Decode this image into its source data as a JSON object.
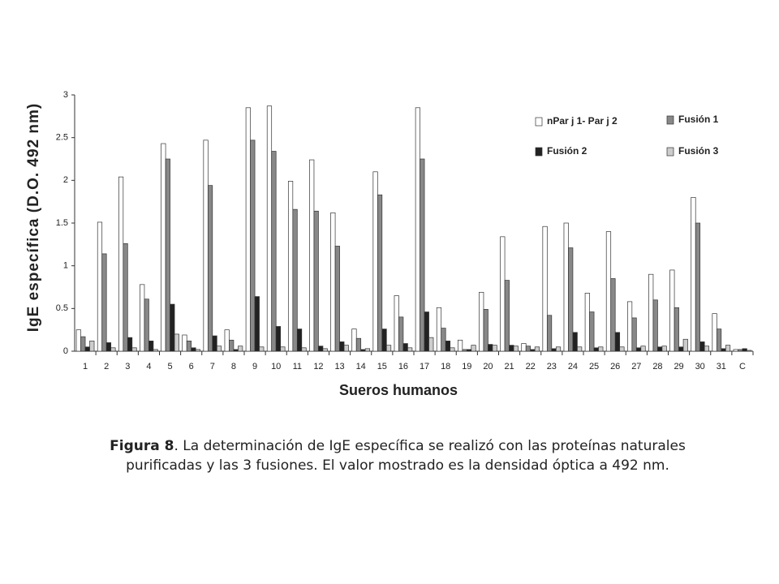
{
  "chart_data": {
    "type": "bar",
    "y_label": "IgE específica (D.O. 492 nm)",
    "x_label": "Sueros humanos",
    "categories": [
      "1",
      "2",
      "3",
      "4",
      "5",
      "6",
      "7",
      "8",
      "9",
      "10",
      "11",
      "12",
      "13",
      "14",
      "15",
      "16",
      "17",
      "18",
      "19",
      "20",
      "21",
      "22",
      "23",
      "24",
      "25",
      "26",
      "27",
      "28",
      "29",
      "30",
      "31",
      "C"
    ],
    "series": [
      {
        "name": "nPar j 1- Par j 2",
        "color": "#ffffff",
        "values": [
          0.25,
          1.51,
          2.04,
          0.78,
          2.43,
          0.19,
          2.47,
          0.25,
          2.85,
          2.87,
          1.99,
          2.24,
          1.62,
          0.26,
          2.1,
          0.65,
          2.85,
          0.51,
          0.13,
          0.69,
          1.34,
          0.09,
          1.46,
          1.5,
          0.68,
          1.4,
          0.58,
          0.9,
          0.95,
          1.8,
          0.44,
          0.02
        ]
      },
      {
        "name": "Fusión 1",
        "color": "#888888",
        "values": [
          0.17,
          1.14,
          1.26,
          0.61,
          2.25,
          0.12,
          1.94,
          0.13,
          2.47,
          2.34,
          1.66,
          1.64,
          1.23,
          0.15,
          1.83,
          0.4,
          2.25,
          0.27,
          0.02,
          0.49,
          0.83,
          0.06,
          0.42,
          1.21,
          0.46,
          0.85,
          0.39,
          0.6,
          0.51,
          1.5,
          0.26,
          0.02
        ]
      },
      {
        "name": "Fusión 2",
        "color": "#222222",
        "values": [
          0.05,
          0.1,
          0.16,
          0.12,
          0.55,
          0.04,
          0.18,
          0.02,
          0.64,
          0.29,
          0.26,
          0.06,
          0.11,
          0.02,
          0.26,
          0.09,
          0.46,
          0.12,
          0.02,
          0.08,
          0.07,
          0.02,
          0.03,
          0.22,
          0.04,
          0.22,
          0.04,
          0.05,
          0.05,
          0.11,
          0.03,
          0.03
        ]
      },
      {
        "name": "Fusión 3",
        "color": "#cccccc",
        "values": [
          0.12,
          0.04,
          0.04,
          0.02,
          0.2,
          0.02,
          0.06,
          0.06,
          0.05,
          0.05,
          0.04,
          0.03,
          0.07,
          0.03,
          0.07,
          0.04,
          0.16,
          0.04,
          0.07,
          0.07,
          0.06,
          0.05,
          0.05,
          0.05,
          0.05,
          0.05,
          0.06,
          0.06,
          0.14,
          0.06,
          0.07,
          0.01
        ]
      }
    ],
    "ylim": [
      0,
      3
    ],
    "yticks": [
      0,
      0.5,
      1,
      1.5,
      2,
      2.5,
      3
    ],
    "grid": false,
    "legend": "upper right"
  },
  "caption": {
    "label": "Figura 8",
    "text": ". La determinación de IgE específica se realizó con las proteínas naturales purificadas y las 3 fusiones. El valor mostrado es la densidad óptica a 492 nm."
  }
}
